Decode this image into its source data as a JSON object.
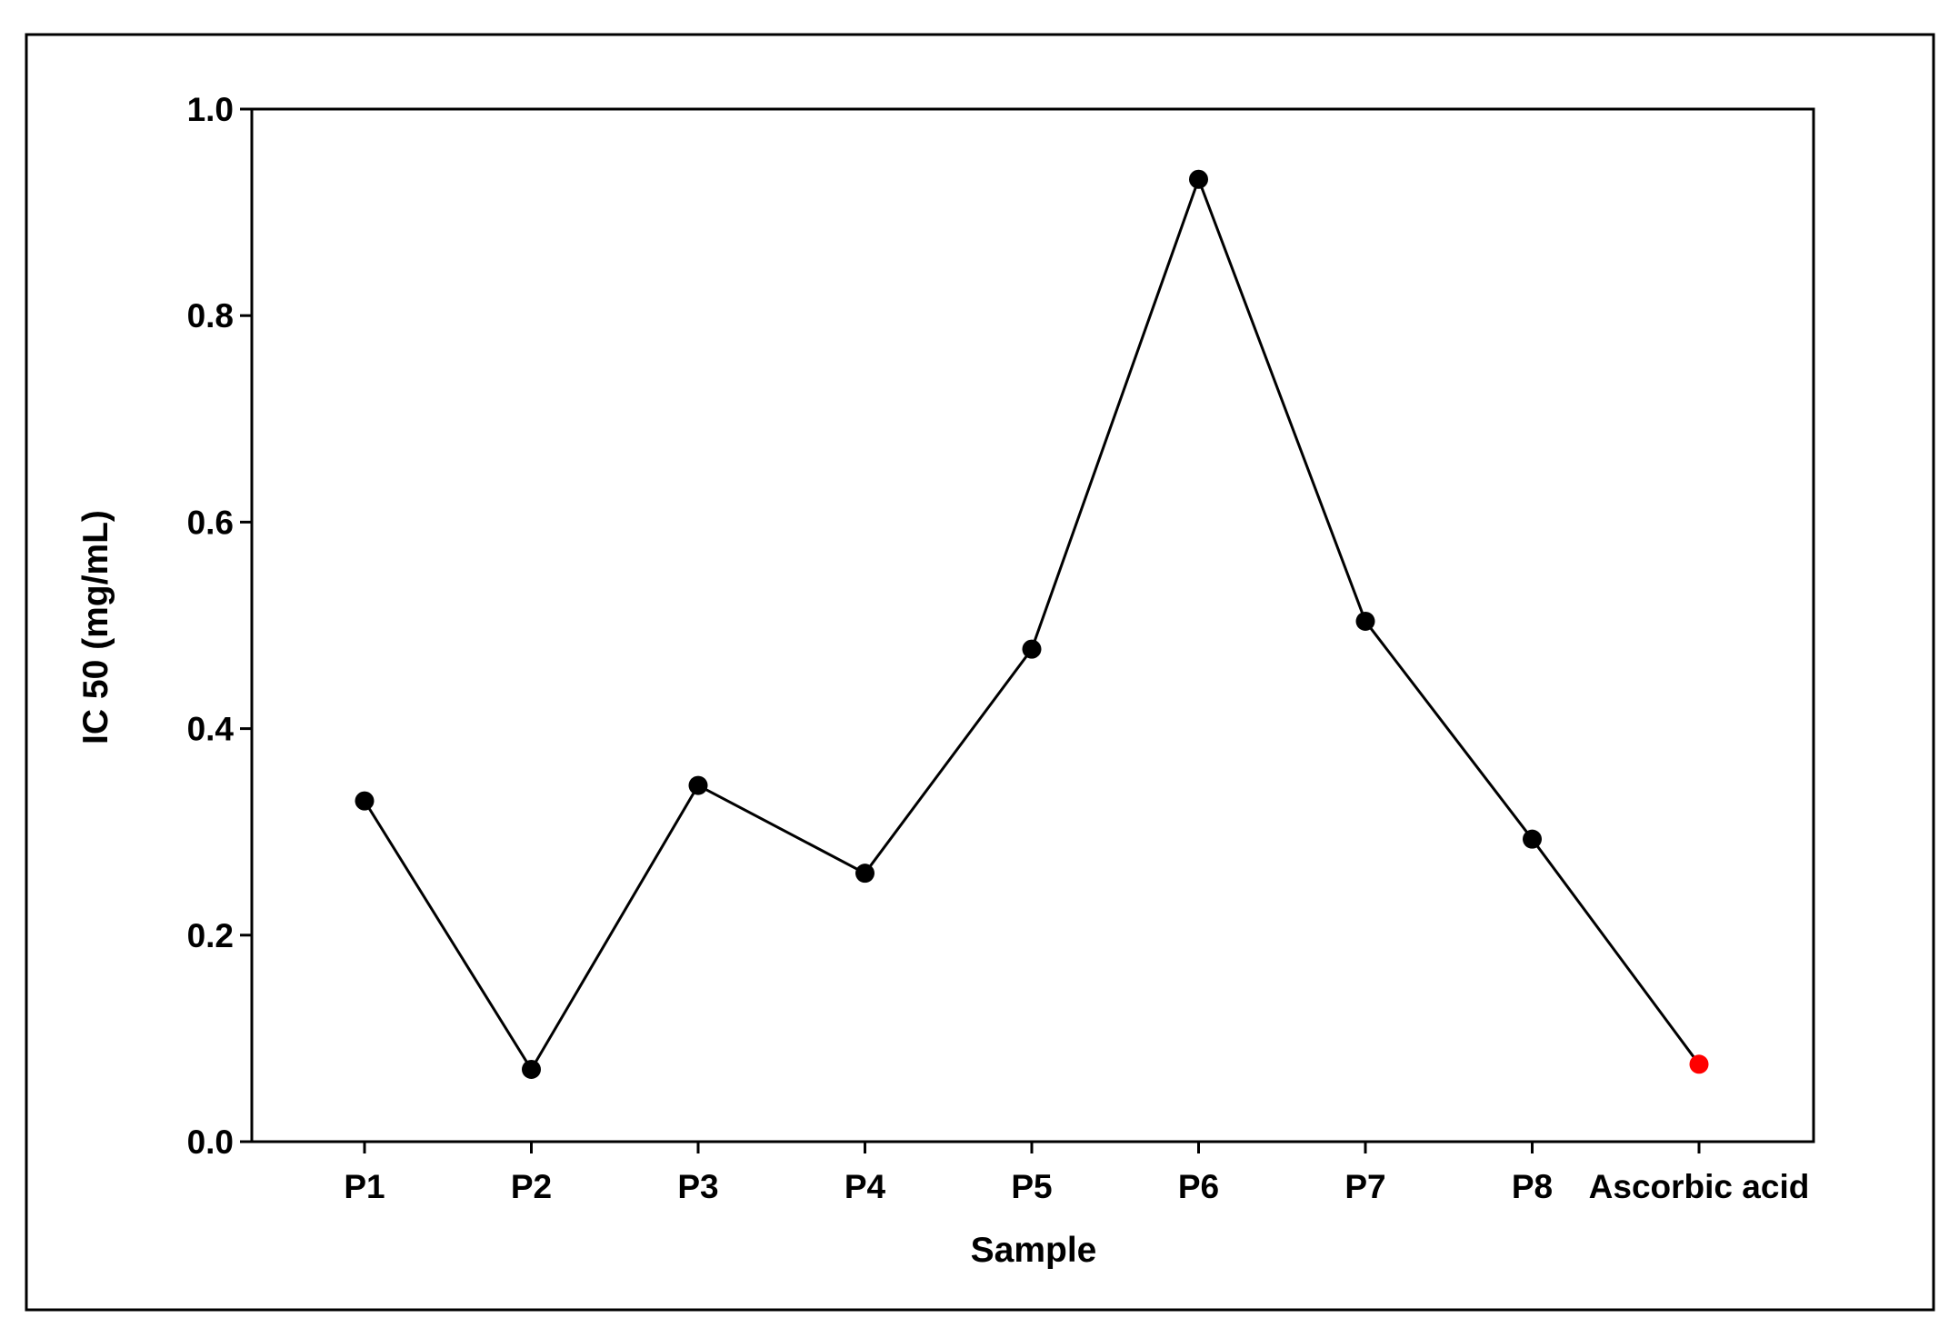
{
  "chart_data": {
    "type": "line",
    "categories": [
      "P1",
      "P2",
      "P3",
      "P4",
      "P5",
      "P6",
      "P7",
      "P8",
      "Ascorbic acid"
    ],
    "series": [
      {
        "values": [
          0.33,
          0.07,
          0.345,
          0.26,
          0.477,
          0.932,
          0.504,
          0.293,
          0.075
        ],
        "point_colors": [
          "#000000",
          "#000000",
          "#000000",
          "#000000",
          "#000000",
          "#000000",
          "#000000",
          "#000000",
          "#ff0000"
        ]
      }
    ],
    "xlabel": "Sample",
    "ylabel": "IC 50 (mg/mL)",
    "ylim": [
      0,
      1.0
    ],
    "yticks": [
      0.0,
      0.2,
      0.4,
      0.6,
      0.8,
      1.0
    ],
    "ytick_labels": [
      "0.0",
      "0.2",
      "0.4",
      "0.6",
      "0.8",
      "1.0"
    ],
    "grid": false,
    "legend": "none",
    "line_color": "#000000",
    "frame": "boxed"
  }
}
